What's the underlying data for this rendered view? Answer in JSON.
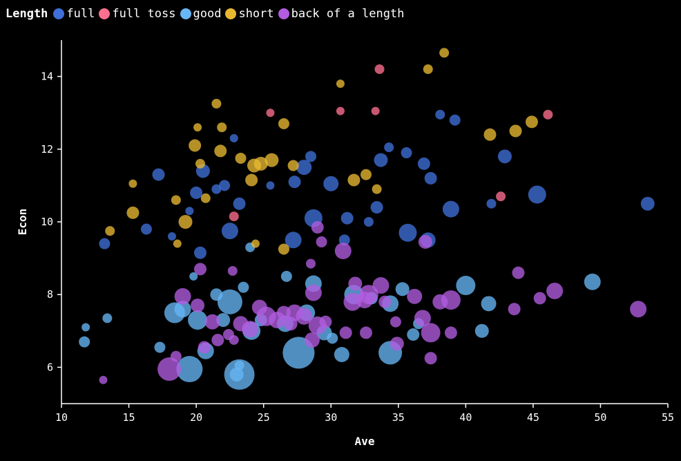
{
  "chart_data": {
    "type": "scatter",
    "title": "",
    "xlabel": "Ave",
    "ylabel": "Econ",
    "xlim": [
      10,
      55
    ],
    "ylim": [
      5,
      15
    ],
    "xticks": [
      "10",
      "15",
      "20",
      "25",
      "30",
      "35",
      "40",
      "45",
      "50",
      "55"
    ],
    "yticks": [
      "6",
      "8",
      "10",
      "12",
      "14"
    ],
    "legend_title": "Length",
    "legend_position": "top-left",
    "grid": false,
    "series": [
      {
        "name": "full",
        "color": "#3f6fd8",
        "points": [
          [
            13.2,
            9.4,
            8
          ],
          [
            16.3,
            9.8,
            8
          ],
          [
            17.2,
            11.3,
            9
          ],
          [
            18.2,
            9.6,
            6
          ],
          [
            20,
            10.8,
            9
          ],
          [
            20.5,
            11.4,
            10
          ],
          [
            20.3,
            9.15,
            9
          ],
          [
            19.5,
            10.3,
            6
          ],
          [
            21.5,
            10.9,
            7
          ],
          [
            22.1,
            11.0,
            8
          ],
          [
            22.8,
            12.3,
            6
          ],
          [
            22.5,
            9.75,
            12
          ],
          [
            23.2,
            10.5,
            9
          ],
          [
            25.5,
            11.0,
            6
          ],
          [
            27.3,
            11.1,
            9
          ],
          [
            28,
            11.5,
            11
          ],
          [
            28.5,
            11.8,
            8
          ],
          [
            27.2,
            9.5,
            12
          ],
          [
            28.7,
            10.1,
            13
          ],
          [
            30,
            11.05,
            11
          ],
          [
            31.2,
            10.1,
            9
          ],
          [
            31,
            9.5,
            8
          ],
          [
            32.8,
            10.0,
            7
          ],
          [
            33.4,
            10.4,
            9
          ],
          [
            33.7,
            11.7,
            10
          ],
          [
            34.3,
            12.05,
            7
          ],
          [
            35.6,
            11.9,
            8
          ],
          [
            36.9,
            11.6,
            9
          ],
          [
            35.7,
            9.7,
            13
          ],
          [
            37.2,
            9.5,
            11
          ],
          [
            37.4,
            11.2,
            9
          ],
          [
            38.1,
            12.95,
            7
          ],
          [
            39.2,
            12.8,
            8
          ],
          [
            38.9,
            10.35,
            12
          ],
          [
            41.9,
            10.5,
            7
          ],
          [
            42.9,
            11.8,
            10
          ],
          [
            45.3,
            10.75,
            13
          ],
          [
            53.5,
            10.5,
            10
          ]
        ]
      },
      {
        "name": "full toss",
        "color": "#ff6f8f",
        "points": [
          [
            25.5,
            13.0,
            6
          ],
          [
            30.7,
            13.05,
            6
          ],
          [
            33.3,
            13.05,
            6
          ],
          [
            33.6,
            14.2,
            7
          ],
          [
            46.1,
            12.95,
            7
          ],
          [
            42.6,
            10.7,
            7
          ],
          [
            22.8,
            10.15,
            7
          ]
        ]
      },
      {
        "name": "good",
        "color": "#67b6f5",
        "points": [
          [
            11.7,
            6.7,
            8
          ],
          [
            11.8,
            7.1,
            6
          ],
          [
            13.4,
            7.35,
            7
          ],
          [
            17.3,
            6.55,
            8
          ],
          [
            18.4,
            7.5,
            15
          ],
          [
            19,
            7.6,
            12
          ],
          [
            19.5,
            5.95,
            19
          ],
          [
            20.1,
            7.3,
            14
          ],
          [
            20.7,
            6.45,
            12
          ],
          [
            19.8,
            8.5,
            6
          ],
          [
            21.5,
            8.0,
            9
          ],
          [
            22,
            7.3,
            10
          ],
          [
            22.5,
            7.8,
            18
          ],
          [
            23.2,
            5.8,
            22
          ],
          [
            23,
            5.8,
            10
          ],
          [
            23.2,
            6.05,
            7
          ],
          [
            23.5,
            8.2,
            8
          ],
          [
            24.1,
            7.0,
            13
          ],
          [
            24.8,
            7.3,
            9
          ],
          [
            24,
            9.3,
            7
          ],
          [
            26.6,
            7.2,
            12
          ],
          [
            26.7,
            8.5,
            8
          ],
          [
            27.6,
            6.4,
            23
          ],
          [
            28.2,
            7.5,
            12
          ],
          [
            28.7,
            8.3,
            12
          ],
          [
            29.5,
            6.95,
            11
          ],
          [
            30.1,
            6.8,
            8
          ],
          [
            30.8,
            6.35,
            11
          ],
          [
            31.7,
            8.0,
            14
          ],
          [
            33,
            7.9,
            9
          ],
          [
            34.4,
            6.4,
            17
          ],
          [
            34.4,
            7.75,
            12
          ],
          [
            35.3,
            8.15,
            10
          ],
          [
            36.1,
            6.9,
            9
          ],
          [
            36.5,
            7.2,
            8
          ],
          [
            40,
            8.25,
            14
          ],
          [
            41.7,
            7.75,
            11
          ],
          [
            41.2,
            7.0,
            10
          ],
          [
            49.4,
            8.35,
            12
          ]
        ]
      },
      {
        "name": "short",
        "color": "#e8b832",
        "points": [
          [
            13.6,
            9.75,
            7
          ],
          [
            15.3,
            11.05,
            6
          ],
          [
            15.3,
            10.25,
            9
          ],
          [
            18.5,
            10.6,
            7
          ],
          [
            18.6,
            9.4,
            6
          ],
          [
            19.2,
            10.0,
            10
          ],
          [
            19.9,
            12.1,
            9
          ],
          [
            20.1,
            12.6,
            6
          ],
          [
            20.3,
            11.6,
            7
          ],
          [
            20.7,
            10.65,
            7
          ],
          [
            21.5,
            13.25,
            7
          ],
          [
            21.9,
            12.6,
            7
          ],
          [
            21.8,
            11.95,
            9
          ],
          [
            23.3,
            11.75,
            8
          ],
          [
            24.1,
            11.15,
            9
          ],
          [
            24.3,
            11.55,
            10
          ],
          [
            24.8,
            11.6,
            10
          ],
          [
            25.6,
            11.7,
            10
          ],
          [
            26.5,
            12.7,
            8
          ],
          [
            26.5,
            9.25,
            8
          ],
          [
            27.2,
            11.55,
            8
          ],
          [
            24.4,
            9.4,
            6
          ],
          [
            30.7,
            13.8,
            6
          ],
          [
            31.7,
            11.15,
            9
          ],
          [
            32.6,
            11.3,
            8
          ],
          [
            33.4,
            10.9,
            7
          ],
          [
            37.2,
            14.2,
            7
          ],
          [
            38.4,
            14.65,
            7
          ],
          [
            41.8,
            12.4,
            9
          ],
          [
            43.7,
            12.5,
            9
          ],
          [
            44.9,
            12.75,
            9
          ]
        ]
      },
      {
        "name": "back of a length",
        "color": "#b25ce0",
        "points": [
          [
            13.1,
            5.65,
            6
          ],
          [
            18,
            5.95,
            17
          ],
          [
            18.5,
            6.3,
            8
          ],
          [
            19,
            7.95,
            12
          ],
          [
            20.1,
            7.7,
            10
          ],
          [
            20.6,
            6.55,
            9
          ],
          [
            20.3,
            8.7,
            9
          ],
          [
            21.2,
            7.25,
            11
          ],
          [
            21.6,
            6.75,
            9
          ],
          [
            22.4,
            6.9,
            8
          ],
          [
            22.8,
            6.75,
            7
          ],
          [
            22.7,
            8.65,
            7
          ],
          [
            23.3,
            7.2,
            11
          ],
          [
            24,
            7.05,
            12
          ],
          [
            24.7,
            7.65,
            11
          ],
          [
            25.2,
            7.4,
            14
          ],
          [
            26,
            7.3,
            12
          ],
          [
            26.5,
            7.5,
            10
          ],
          [
            27,
            7.2,
            10
          ],
          [
            27.3,
            7.5,
            12
          ],
          [
            28,
            7.4,
            12
          ],
          [
            28.6,
            6.75,
            11
          ],
          [
            29,
            7.15,
            13
          ],
          [
            29.6,
            7.25,
            9
          ],
          [
            29.3,
            9.45,
            8
          ],
          [
            29,
            9.85,
            9
          ],
          [
            28.7,
            8.05,
            12
          ],
          [
            28.5,
            8.85,
            7
          ],
          [
            30.9,
            9.2,
            12
          ],
          [
            31.1,
            6.95,
            9
          ],
          [
            31.6,
            7.8,
            13
          ],
          [
            31.8,
            8.3,
            10
          ],
          [
            32.5,
            7.85,
            12
          ],
          [
            32.8,
            8.0,
            14
          ],
          [
            32.6,
            6.95,
            9
          ],
          [
            33.7,
            8.25,
            12
          ],
          [
            34,
            7.8,
            9
          ],
          [
            34.8,
            7.25,
            8
          ],
          [
            34.9,
            6.65,
            10
          ],
          [
            36.2,
            7.95,
            11
          ],
          [
            36.8,
            7.35,
            12
          ],
          [
            37.4,
            6.95,
            14
          ],
          [
            37.4,
            6.25,
            9
          ],
          [
            38.1,
            7.8,
            11
          ],
          [
            38.9,
            7.85,
            14
          ],
          [
            38.9,
            6.95,
            9
          ],
          [
            37,
            9.45,
            10
          ],
          [
            43.6,
            7.6,
            9
          ],
          [
            43.9,
            8.6,
            9
          ],
          [
            45.5,
            7.9,
            9
          ],
          [
            46.6,
            8.1,
            12
          ],
          [
            52.8,
            7.6,
            12
          ]
        ]
      }
    ]
  }
}
